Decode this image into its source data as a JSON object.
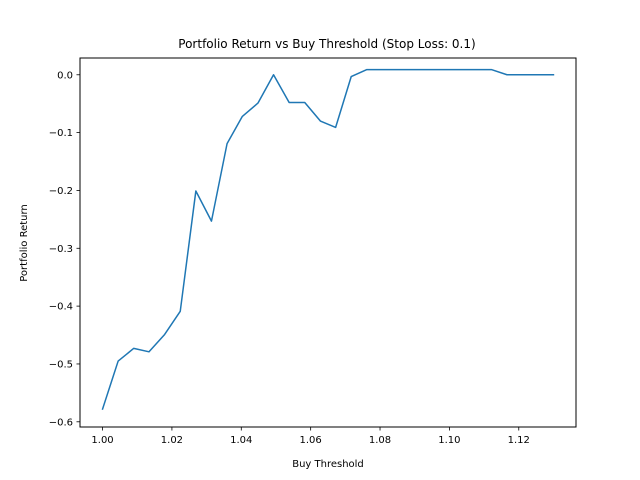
{
  "chart_data": {
    "type": "line",
    "title": "Portfolio Return vs Buy Threshold (Stop Loss: 0.1)",
    "xlabel": "Buy Threshold",
    "ylabel": "Portfolio Return",
    "xlim": [
      0.9935,
      1.1365
    ],
    "ylim": [
      -0.609,
      0.029
    ],
    "grid": false,
    "xticks": [
      1.0,
      1.02,
      1.04,
      1.06,
      1.08,
      1.1,
      1.12
    ],
    "xtick_labels": [
      "1.00",
      "1.02",
      "1.04",
      "1.06",
      "1.08",
      "1.10",
      "1.12"
    ],
    "yticks": [
      0.0,
      -0.1,
      -0.2,
      -0.3,
      -0.4,
      -0.5,
      -0.6
    ],
    "ytick_labels": [
      "0.0",
      "−0.1",
      "−0.2",
      "−0.3",
      "−0.4",
      "−0.5",
      "−0.6"
    ],
    "series": [
      {
        "color": "#1f77b4",
        "x": [
          1.0,
          1.0045,
          1.009,
          1.0134,
          1.0179,
          1.0224,
          1.0269,
          1.0314,
          1.0359,
          1.0403,
          1.0448,
          1.0493,
          1.0538,
          1.0583,
          1.0628,
          1.0672,
          1.0717,
          1.0762,
          1.0807,
          1.0852,
          1.0897,
          1.0941,
          1.0986,
          1.1031,
          1.1076,
          1.1121,
          1.1166,
          1.121,
          1.1255,
          1.13
        ],
        "y": [
          -0.578,
          -0.495,
          -0.473,
          -0.479,
          -0.449,
          -0.409,
          -0.201,
          -0.253,
          -0.119,
          -0.072,
          -0.049,
          0.0,
          -0.048,
          -0.048,
          -0.08,
          -0.091,
          -0.003,
          0.009,
          0.009,
          0.009,
          0.009,
          0.009,
          0.009,
          0.009,
          0.009,
          0.009,
          0.0,
          0.0,
          0.0,
          0.0
        ]
      }
    ]
  }
}
